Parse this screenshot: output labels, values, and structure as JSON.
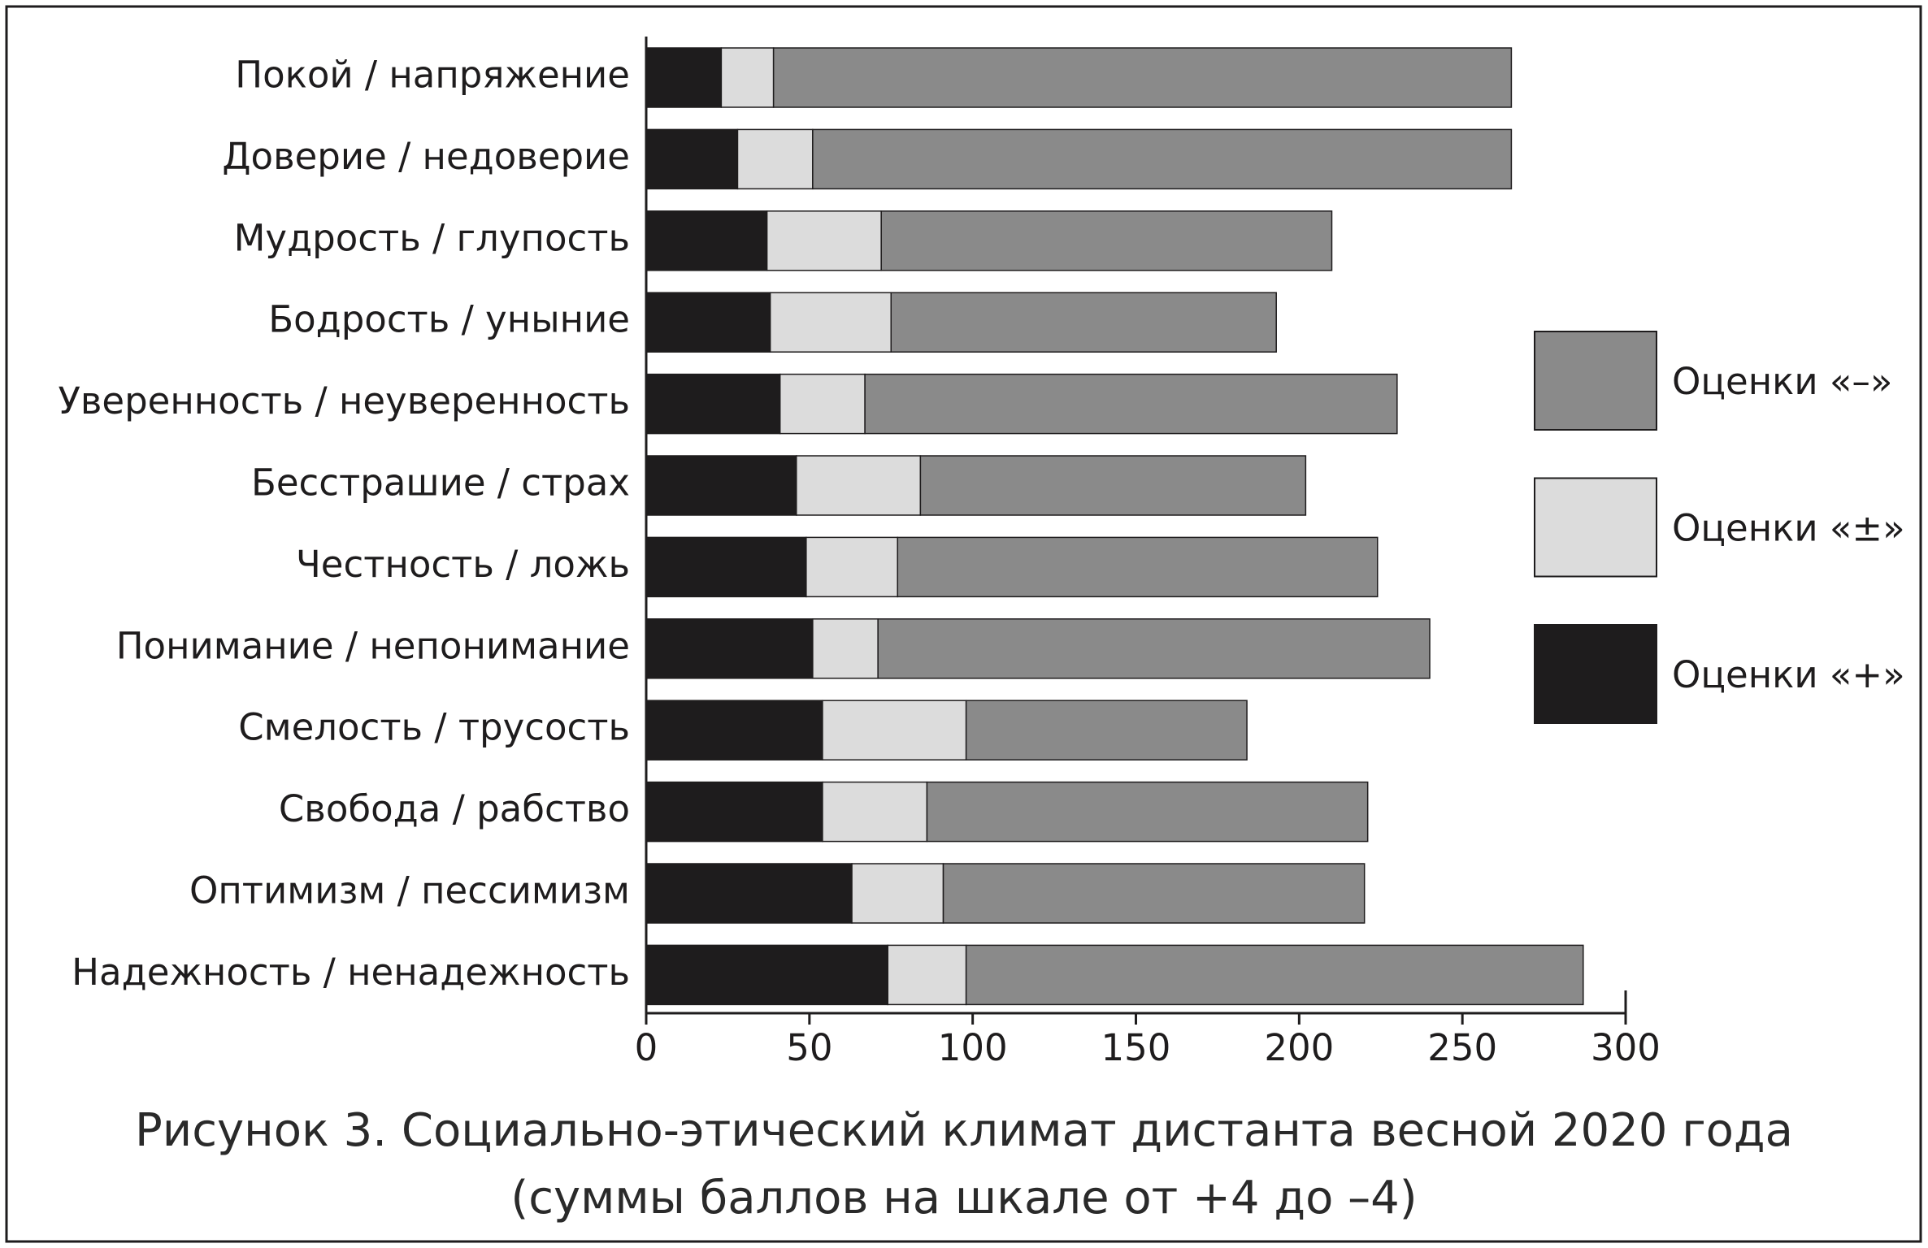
{
  "chart_data": {
    "type": "stacked-bar-horizontal",
    "categories": [
      "Покой / напряжение",
      "Доверие / недоверие",
      "Мудрость / глупость",
      "Бодрость / уныние",
      "Уверенность / неуверенность",
      "Бесстрашие / страх",
      "Честность / ложь",
      "Понимание / непонимание",
      "Смелость / трусость",
      "Свобода / рабство",
      "Оптимизм / пессимизм",
      "Надежность / ненадежность"
    ],
    "series": [
      {
        "name": "Оценки «+»",
        "color": "#1e1c1d",
        "values": [
          23,
          28,
          37,
          38,
          41,
          46,
          49,
          51,
          54,
          54,
          63,
          74
        ]
      },
      {
        "name": "Оценки «±»",
        "color": "#dcdcdc",
        "values": [
          16,
          23,
          35,
          37,
          26,
          38,
          28,
          20,
          44,
          32,
          28,
          24
        ]
      },
      {
        "name": "Оценки «–»",
        "color": "#8a8a8a",
        "values": [
          226,
          214,
          138,
          118,
          163,
          118,
          147,
          169,
          86,
          135,
          129,
          189
        ]
      }
    ],
    "xlim": [
      0,
      300
    ],
    "xticks": [
      0,
      50,
      100,
      150,
      200,
      250,
      300
    ],
    "caption": [
      "Рисунок 3. Социально-этический климат дистанта весной 2020 года",
      "(суммы баллов на шкале от +4 до –4)"
    ]
  }
}
